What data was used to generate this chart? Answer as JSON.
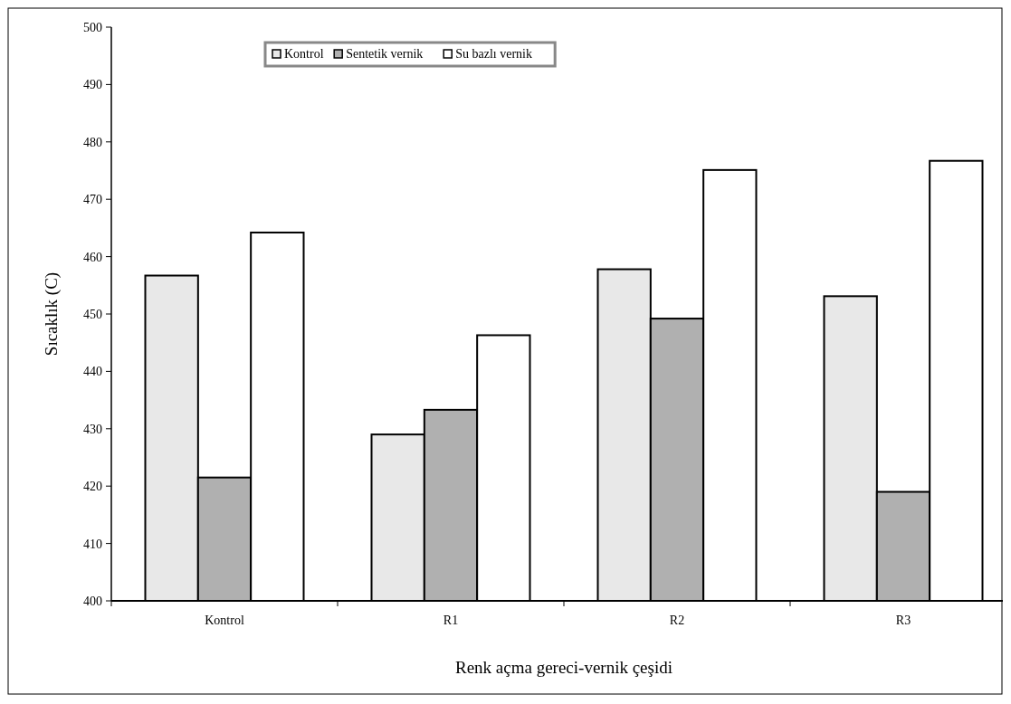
{
  "chart_data": {
    "type": "bar",
    "xlabel": "Renk açma gereci-vernik çeşidi",
    "ylabel": "Sıcaklık (C)",
    "categories": [
      "Kontrol",
      "R1",
      "R2",
      "R3"
    ],
    "series": [
      {
        "name": "Kontrol",
        "color": "#e8e8e8",
        "values": [
          456.7,
          429,
          457.8,
          453.1
        ]
      },
      {
        "name": "Sentetik vernik",
        "color": "#b0b0b0",
        "values": [
          421.5,
          433.3,
          449.2,
          419
        ]
      },
      {
        "name": "Su bazlı vernik",
        "color": "#ffffff",
        "values": [
          464.2,
          446.3,
          475.1,
          476.7
        ]
      }
    ],
    "ylim": [
      400,
      500
    ],
    "yticks": [
      400,
      410,
      420,
      430,
      440,
      450,
      460,
      470,
      480,
      490,
      500
    ],
    "grid": false,
    "legend": "top left"
  }
}
